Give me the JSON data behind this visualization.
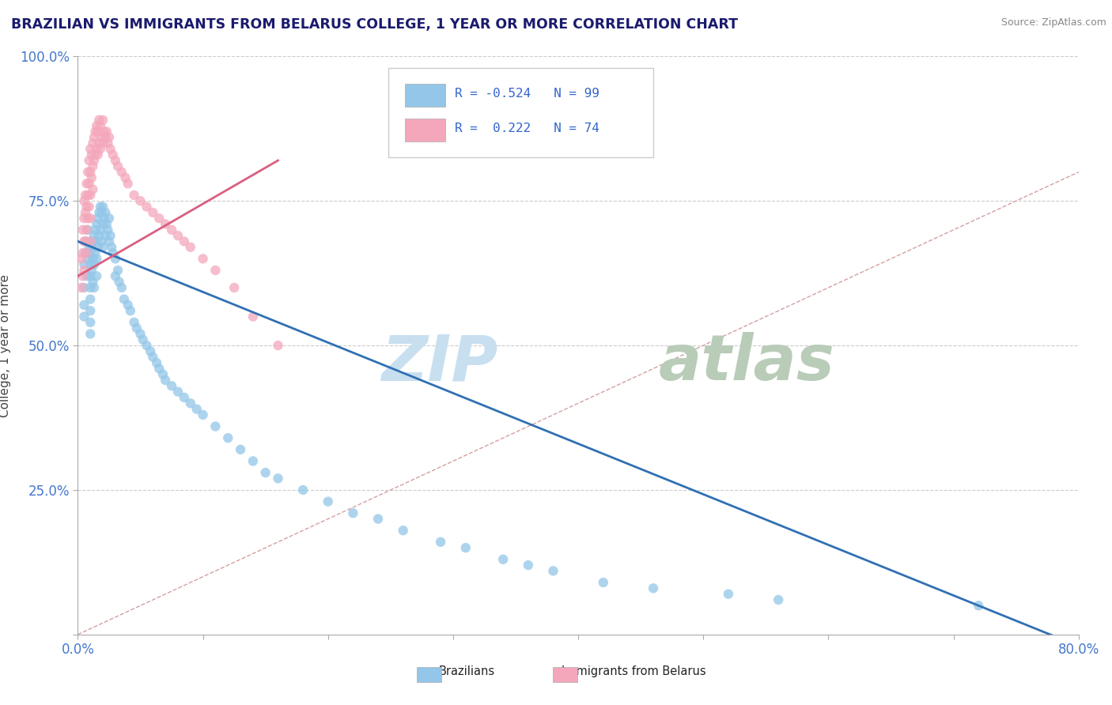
{
  "title": "BRAZILIAN VS IMMIGRANTS FROM BELARUS COLLEGE, 1 YEAR OR MORE CORRELATION CHART",
  "source": "Source: ZipAtlas.com",
  "ylabel": "College, 1 year or more",
  "xlim": [
    0.0,
    0.8
  ],
  "ylim": [
    0.0,
    1.0
  ],
  "xtick_vals": [
    0.0,
    0.1,
    0.2,
    0.3,
    0.4,
    0.5,
    0.6,
    0.7,
    0.8
  ],
  "xticklabels": [
    "0.0%",
    "",
    "",
    "",
    "",
    "",
    "",
    "",
    "80.0%"
  ],
  "ytick_vals": [
    0.0,
    0.25,
    0.5,
    0.75,
    1.0
  ],
  "yticklabels": [
    "",
    "25.0%",
    "50.0%",
    "75.0%",
    "100.0%"
  ],
  "blue_R": -0.524,
  "blue_N": 99,
  "pink_R": 0.222,
  "pink_N": 74,
  "blue_color": "#93c6e8",
  "pink_color": "#f4a7bb",
  "blue_line_color": "#3070b3",
  "pink_line_color": "#d95f7f",
  "ref_line_color": "#d4a0a0",
  "background_color": "#ffffff",
  "grid_color": "#cccccc",
  "title_color": "#1a1a6e",
  "axis_label_color": "#444444",
  "tick_color": "#4477cc",
  "watermark_zip_color": "#c8dff0",
  "watermark_atlas_color": "#b8ccb8",
  "legend_R_color": "#3366cc",
  "legend_label_color": "#222222",
  "blue_scatter_x": [
    0.005,
    0.005,
    0.005,
    0.005,
    0.006,
    0.007,
    0.007,
    0.008,
    0.008,
    0.009,
    0.01,
    0.01,
    0.01,
    0.01,
    0.01,
    0.01,
    0.01,
    0.01,
    0.011,
    0.011,
    0.012,
    0.012,
    0.012,
    0.013,
    0.013,
    0.013,
    0.014,
    0.014,
    0.015,
    0.015,
    0.015,
    0.015,
    0.016,
    0.016,
    0.017,
    0.017,
    0.018,
    0.018,
    0.019,
    0.019,
    0.02,
    0.02,
    0.02,
    0.021,
    0.022,
    0.022,
    0.023,
    0.024,
    0.025,
    0.025,
    0.026,
    0.027,
    0.028,
    0.03,
    0.03,
    0.032,
    0.033,
    0.035,
    0.037,
    0.04,
    0.042,
    0.045,
    0.047,
    0.05,
    0.052,
    0.055,
    0.058,
    0.06,
    0.063,
    0.065,
    0.068,
    0.07,
    0.075,
    0.08,
    0.085,
    0.09,
    0.095,
    0.1,
    0.11,
    0.12,
    0.13,
    0.14,
    0.15,
    0.16,
    0.18,
    0.2,
    0.22,
    0.24,
    0.26,
    0.29,
    0.31,
    0.34,
    0.36,
    0.38,
    0.42,
    0.46,
    0.52,
    0.56,
    0.72
  ],
  "blue_scatter_y": [
    0.64,
    0.6,
    0.57,
    0.55,
    0.66,
    0.68,
    0.62,
    0.7,
    0.65,
    0.67,
    0.66,
    0.64,
    0.62,
    0.6,
    0.58,
    0.56,
    0.54,
    0.52,
    0.67,
    0.63,
    0.68,
    0.65,
    0.61,
    0.69,
    0.64,
    0.6,
    0.7,
    0.66,
    0.71,
    0.68,
    0.65,
    0.62,
    0.72,
    0.67,
    0.73,
    0.69,
    0.74,
    0.7,
    0.73,
    0.68,
    0.74,
    0.71,
    0.67,
    0.72,
    0.73,
    0.69,
    0.71,
    0.7,
    0.72,
    0.68,
    0.69,
    0.67,
    0.66,
    0.65,
    0.62,
    0.63,
    0.61,
    0.6,
    0.58,
    0.57,
    0.56,
    0.54,
    0.53,
    0.52,
    0.51,
    0.5,
    0.49,
    0.48,
    0.47,
    0.46,
    0.45,
    0.44,
    0.43,
    0.42,
    0.41,
    0.4,
    0.39,
    0.38,
    0.36,
    0.34,
    0.32,
    0.3,
    0.28,
    0.27,
    0.25,
    0.23,
    0.21,
    0.2,
    0.18,
    0.16,
    0.15,
    0.13,
    0.12,
    0.11,
    0.09,
    0.08,
    0.07,
    0.06,
    0.05
  ],
  "pink_scatter_x": [
    0.003,
    0.003,
    0.004,
    0.004,
    0.004,
    0.005,
    0.005,
    0.005,
    0.005,
    0.006,
    0.006,
    0.006,
    0.007,
    0.007,
    0.007,
    0.007,
    0.008,
    0.008,
    0.008,
    0.009,
    0.009,
    0.009,
    0.01,
    0.01,
    0.01,
    0.01,
    0.01,
    0.011,
    0.011,
    0.012,
    0.012,
    0.012,
    0.013,
    0.013,
    0.014,
    0.014,
    0.015,
    0.015,
    0.016,
    0.016,
    0.017,
    0.017,
    0.018,
    0.018,
    0.019,
    0.02,
    0.02,
    0.021,
    0.022,
    0.023,
    0.024,
    0.025,
    0.026,
    0.028,
    0.03,
    0.032,
    0.035,
    0.038,
    0.04,
    0.045,
    0.05,
    0.055,
    0.06,
    0.065,
    0.07,
    0.075,
    0.08,
    0.085,
    0.09,
    0.1,
    0.11,
    0.125,
    0.14,
    0.16
  ],
  "pink_scatter_y": [
    0.65,
    0.6,
    0.7,
    0.66,
    0.62,
    0.75,
    0.72,
    0.68,
    0.63,
    0.76,
    0.73,
    0.68,
    0.78,
    0.74,
    0.7,
    0.66,
    0.8,
    0.76,
    0.72,
    0.82,
    0.78,
    0.74,
    0.84,
    0.8,
    0.76,
    0.72,
    0.68,
    0.83,
    0.79,
    0.85,
    0.81,
    0.77,
    0.86,
    0.82,
    0.87,
    0.83,
    0.88,
    0.84,
    0.87,
    0.83,
    0.89,
    0.85,
    0.88,
    0.84,
    0.86,
    0.89,
    0.85,
    0.87,
    0.86,
    0.87,
    0.85,
    0.86,
    0.84,
    0.83,
    0.82,
    0.81,
    0.8,
    0.79,
    0.78,
    0.76,
    0.75,
    0.74,
    0.73,
    0.72,
    0.71,
    0.7,
    0.69,
    0.68,
    0.67,
    0.65,
    0.63,
    0.6,
    0.55,
    0.5
  ],
  "blue_line_x0": 0.0,
  "blue_line_x1": 0.8,
  "blue_line_y0": 0.68,
  "blue_line_y1": -0.02,
  "pink_line_x0": 0.0,
  "pink_line_x1": 0.16,
  "pink_line_y0": 0.62,
  "pink_line_y1": 0.82,
  "ref_line_x0": 0.0,
  "ref_line_x1": 0.8,
  "ref_line_y0": 0.0,
  "ref_line_y1": 0.8
}
